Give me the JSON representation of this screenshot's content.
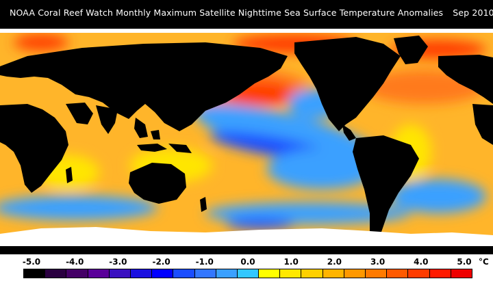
{
  "title": {
    "main": "NOAA Coral Reef Watch Monthly Maximum Satellite Nighttime Sea Surface Temperature Anomalies",
    "date": "Sep 2010"
  },
  "legend": {
    "tick_labels": [
      "-5.0",
      "-4.0",
      "-3.0",
      "-2.0",
      "-1.0",
      "0.0",
      "1.0",
      "2.0",
      "3.0",
      "4.0",
      "5.0"
    ],
    "unit": "°C",
    "colors": [
      "#000000",
      "#2a0040",
      "#440066",
      "#5a0099",
      "#3a10c0",
      "#1a10e0",
      "#0000ff",
      "#1a4dff",
      "#3377ff",
      "#3aa0ff",
      "#33c8ff",
      "#ffff00",
      "#ffe800",
      "#ffd000",
      "#ffb400",
      "#ff9800",
      "#ff7a00",
      "#ff5a00",
      "#ff3c00",
      "#ff1a00",
      "#ee0000"
    ]
  },
  "map": {
    "colors": {
      "land": "#000000",
      "ice": "#ffffff",
      "ocean_base": "#ffb52a",
      "warm": "#ff7a1a",
      "hot": "#ff3c00",
      "cool": "#3aa0ff",
      "cold": "#1a4dff",
      "near_zero": "#ffe600"
    }
  }
}
